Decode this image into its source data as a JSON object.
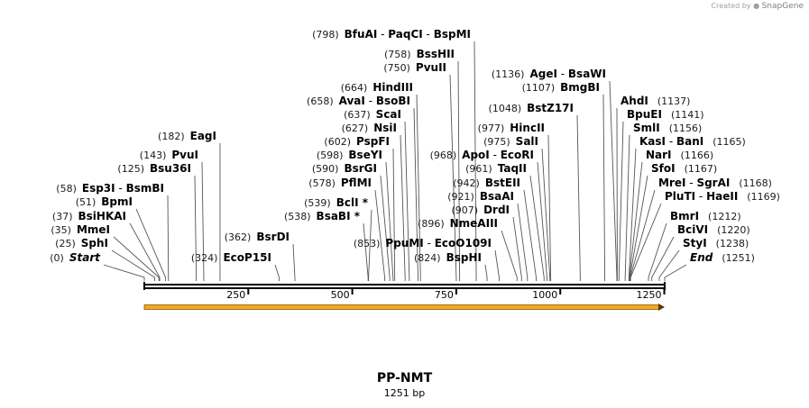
{
  "watermark": {
    "prefix": "Created by",
    "brand": "SnapGene"
  },
  "sequence": {
    "name": "PP-NMT",
    "length_label": "1251 bp",
    "length_bp": 1251
  },
  "axis": {
    "ticks": [
      {
        "bp": 250,
        "label": "250"
      },
      {
        "bp": 500,
        "label": "500"
      },
      {
        "bp": 750,
        "label": "750"
      },
      {
        "bp": 1000,
        "label": "1000"
      },
      {
        "bp": 1250,
        "label": "1250"
      }
    ]
  },
  "feature": {
    "name": "orf-arrow",
    "color": "#f5a623",
    "start": 1,
    "end": 1251,
    "direction": "forward"
  },
  "left_labels": [
    {
      "pos": "(0)",
      "parts": [
        {
          "name": "Start",
          "italic": true
        }
      ],
      "sites": [
        0
      ]
    },
    {
      "pos": "(25)",
      "parts": [
        {
          "name": "SphI"
        }
      ],
      "sites": [
        25
      ]
    },
    {
      "pos": "(35)",
      "parts": [
        {
          "name": "MmeI"
        }
      ],
      "sites": [
        35
      ]
    },
    {
      "pos": "(37)",
      "parts": [
        {
          "name": "BsiHKAI"
        }
      ],
      "sites": [
        37
      ]
    },
    {
      "pos": "(51)",
      "parts": [
        {
          "name": "BpmI"
        }
      ],
      "sites": [
        51
      ]
    },
    {
      "pos": "(58)",
      "parts": [
        {
          "name": "Esp3I"
        },
        {
          "name": "BsmBI"
        }
      ],
      "sites": [
        58
      ]
    },
    {
      "pos": "(125)",
      "parts": [
        {
          "name": "Bsu36I"
        }
      ],
      "sites": [
        125
      ]
    },
    {
      "pos": "(143)",
      "parts": [
        {
          "name": "PvuI"
        }
      ],
      "sites": [
        143
      ]
    },
    {
      "pos": "(182)",
      "parts": [
        {
          "name": "EagI"
        }
      ],
      "sites": [
        182
      ]
    },
    {
      "pos": "(324)",
      "parts": [
        {
          "name": "EcoP15I"
        }
      ],
      "sites": [
        324
      ]
    },
    {
      "pos": "(362)",
      "parts": [
        {
          "name": "BsrDI"
        }
      ],
      "sites": [
        362
      ]
    },
    {
      "pos": "(538)",
      "parts": [
        {
          "name": "BsaBI *"
        }
      ],
      "sites": [
        538
      ]
    },
    {
      "pos": "(539)",
      "parts": [
        {
          "name": "BclI *"
        }
      ],
      "sites": [
        539
      ]
    },
    {
      "pos": "(578)",
      "parts": [
        {
          "name": "PflMI"
        }
      ],
      "sites": [
        578
      ]
    },
    {
      "pos": "(590)",
      "parts": [
        {
          "name": "BsrGI"
        }
      ],
      "sites": [
        590
      ]
    },
    {
      "pos": "(598)",
      "parts": [
        {
          "name": "BseYI"
        }
      ],
      "sites": [
        598
      ]
    },
    {
      "pos": "(602)",
      "parts": [
        {
          "name": "PspFI"
        }
      ],
      "sites": [
        602
      ]
    },
    {
      "pos": "(627)",
      "parts": [
        {
          "name": "NsiI"
        }
      ],
      "sites": [
        627
      ]
    },
    {
      "pos": "(637)",
      "parts": [
        {
          "name": "ScaI"
        }
      ],
      "sites": [
        637
      ]
    },
    {
      "pos": "(658)",
      "parts": [
        {
          "name": "AvaI"
        },
        {
          "name": "BsoBI"
        }
      ],
      "sites": [
        658
      ]
    },
    {
      "pos": "(664)",
      "parts": [
        {
          "name": "HindIII"
        }
      ],
      "sites": [
        664
      ]
    },
    {
      "pos": "(750)",
      "parts": [
        {
          "name": "PvuII"
        }
      ],
      "sites": [
        750
      ]
    },
    {
      "pos": "(758)",
      "parts": [
        {
          "name": "BssHII"
        }
      ],
      "sites": [
        758
      ]
    },
    {
      "pos": "(798)",
      "parts": [
        {
          "name": "BfuAI"
        },
        {
          "name": "PaqCI"
        },
        {
          "name": "BspMI"
        }
      ],
      "sites": [
        798
      ]
    },
    {
      "pos": "(853)",
      "parts": [
        {
          "name": "PpuMI"
        },
        {
          "name": "EcoO109I"
        }
      ],
      "sites": [
        853
      ]
    },
    {
      "pos": "(824)",
      "parts": [
        {
          "name": "BspHI"
        }
      ],
      "sites": [
        824
      ]
    },
    {
      "pos": "(896)",
      "parts": [
        {
          "name": "NmeAIII"
        }
      ],
      "sites": [
        896
      ]
    },
    {
      "pos": "(907)",
      "parts": [
        {
          "name": "DrdI"
        }
      ],
      "sites": [
        907
      ]
    },
    {
      "pos": "(921)",
      "parts": [
        {
          "name": "BsaAI"
        }
      ],
      "sites": [
        921
      ]
    },
    {
      "pos": "(942)",
      "parts": [
        {
          "name": "BstEII"
        }
      ],
      "sites": [
        942
      ]
    },
    {
      "pos": "(961)",
      "parts": [
        {
          "name": "TaqII"
        }
      ],
      "sites": [
        961
      ]
    },
    {
      "pos": "(968)",
      "parts": [
        {
          "name": "ApoI"
        },
        {
          "name": "EcoRI"
        }
      ],
      "sites": [
        968
      ]
    },
    {
      "pos": "(975)",
      "parts": [
        {
          "name": "SalI"
        }
      ],
      "sites": [
        975
      ]
    },
    {
      "pos": "(977)",
      "parts": [
        {
          "name": "HincII"
        }
      ],
      "sites": [
        977
      ]
    },
    {
      "pos": "(1048)",
      "parts": [
        {
          "name": "BstZ17I"
        }
      ],
      "sites": [
        1048
      ]
    },
    {
      "pos": "(1107)",
      "parts": [
        {
          "name": "BmgBI"
        }
      ],
      "sites": [
        1107
      ]
    },
    {
      "pos": "(1136)",
      "parts": [
        {
          "name": "AgeI"
        },
        {
          "name": "BsaWI"
        }
      ],
      "sites": [
        1136
      ]
    }
  ],
  "right_labels": [
    {
      "pos": "(1137)",
      "parts": [
        {
          "name": "AhdI"
        }
      ],
      "sites": [
        1137
      ]
    },
    {
      "pos": "(1141)",
      "parts": [
        {
          "name": "BpuEI"
        }
      ],
      "sites": [
        1141
      ]
    },
    {
      "pos": "(1156)",
      "parts": [
        {
          "name": "SmlI"
        }
      ],
      "sites": [
        1156
      ]
    },
    {
      "pos": "(1165)",
      "parts": [
        {
          "name": "KasI"
        },
        {
          "name": "BanI"
        }
      ],
      "sites": [
        1165
      ]
    },
    {
      "pos": "(1166)",
      "parts": [
        {
          "name": "NarI"
        }
      ],
      "sites": [
        1166
      ]
    },
    {
      "pos": "(1167)",
      "parts": [
        {
          "name": "SfoI"
        }
      ],
      "sites": [
        1167
      ]
    },
    {
      "pos": "(1168)",
      "parts": [
        {
          "name": "MreI"
        },
        {
          "name": "SgrAI"
        }
      ],
      "sites": [
        1168
      ]
    },
    {
      "pos": "(1169)",
      "parts": [
        {
          "name": "PluTI"
        },
        {
          "name": "HaeII"
        }
      ],
      "sites": [
        1169
      ]
    },
    {
      "pos": "(1212)",
      "parts": [
        {
          "name": "BmrI"
        }
      ],
      "sites": [
        1212
      ]
    },
    {
      "pos": "(1220)",
      "parts": [
        {
          "name": "BciVI"
        }
      ],
      "sites": [
        1220
      ]
    },
    {
      "pos": "(1238)",
      "parts": [
        {
          "name": "StyI"
        }
      ],
      "sites": [
        1238
      ]
    },
    {
      "pos": "(1251)",
      "parts": [
        {
          "name": "End",
          "italic": true
        }
      ],
      "sites": [
        1251
      ]
    }
  ]
}
